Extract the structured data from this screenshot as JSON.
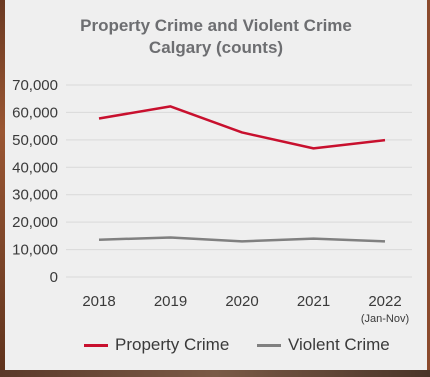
{
  "chart_data": {
    "type": "line",
    "title": "Property Crime and Violent Crime",
    "subtitle": "Calgary (counts)",
    "categories": [
      "2018",
      "2019",
      "2020",
      "2021",
      "2022"
    ],
    "category_sublabels": [
      "",
      "",
      "",
      "",
      "(Jan-Nov)"
    ],
    "series": [
      {
        "name": "Property Crime",
        "color": "#c8102e",
        "values": [
          57800,
          62200,
          52700,
          46900,
          49900
        ]
      },
      {
        "name": "Violent Crime",
        "color": "#808080",
        "values": [
          13600,
          14400,
          13000,
          14000,
          13000
        ]
      }
    ],
    "ylim": [
      0,
      70000
    ],
    "yticks": [
      "0",
      "10,000",
      "20,000",
      "30,000",
      "40,000",
      "50,000",
      "60,000",
      "70,000"
    ],
    "grid": true,
    "legend": "bottom"
  }
}
